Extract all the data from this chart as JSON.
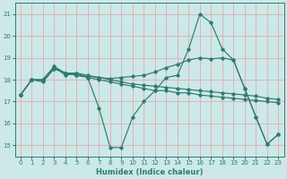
{
  "xlabel": "Humidex (Indice chaleur)",
  "ylabel": "",
  "bg_color": "#cce8e8",
  "grid_color": "#e8a0a0",
  "line_color": "#2e7d6e",
  "xlim": [
    -0.5,
    23.5
  ],
  "ylim": [
    14.5,
    21.5
  ],
  "yticks": [
    15,
    16,
    17,
    18,
    19,
    20,
    21
  ],
  "xticks": [
    0,
    1,
    2,
    3,
    4,
    5,
    6,
    7,
    8,
    9,
    10,
    11,
    12,
    13,
    14,
    15,
    16,
    17,
    18,
    19,
    20,
    21,
    22,
    23
  ],
  "lines": [
    {
      "x": [
        0,
        1,
        2,
        3,
        4,
        5,
        6,
        7,
        8,
        9,
        10,
        11,
        12,
        13,
        14,
        15,
        16,
        17,
        18,
        19,
        20,
        21,
        22,
        23
      ],
      "y": [
        17.3,
        18.0,
        18.0,
        18.6,
        18.2,
        18.3,
        18.1,
        16.7,
        14.9,
        14.9,
        16.3,
        17.0,
        17.5,
        18.1,
        18.2,
        19.4,
        21.0,
        20.6,
        19.4,
        18.9,
        17.6,
        16.3,
        15.05,
        15.5
      ]
    },
    {
      "x": [
        0,
        1,
        2,
        3,
        4,
        5,
        6,
        7,
        8,
        9,
        10,
        11,
        12,
        13,
        14,
        15,
        16,
        17,
        18,
        19,
        20,
        21,
        22,
        23
      ],
      "y": [
        17.3,
        18.0,
        17.9,
        18.5,
        18.3,
        18.2,
        18.1,
        18.0,
        17.9,
        17.8,
        17.7,
        17.6,
        17.5,
        17.5,
        17.4,
        17.4,
        17.3,
        17.25,
        17.2,
        17.15,
        17.1,
        17.05,
        17.0,
        16.95
      ]
    },
    {
      "x": [
        0,
        1,
        2,
        3,
        4,
        5,
        6,
        7,
        8,
        9,
        10,
        11,
        12,
        13,
        14,
        15,
        16,
        17,
        18,
        19,
        20,
        21,
        22,
        23
      ],
      "y": [
        17.3,
        18.0,
        18.0,
        18.6,
        18.3,
        18.3,
        18.2,
        18.1,
        18.05,
        18.1,
        18.15,
        18.2,
        18.35,
        18.55,
        18.7,
        18.9,
        19.0,
        18.95,
        19.0,
        18.9,
        17.6,
        16.3,
        15.05,
        15.5
      ]
    },
    {
      "x": [
        0,
        1,
        2,
        3,
        4,
        5,
        6,
        7,
        8,
        9,
        10,
        11,
        12,
        13,
        14,
        15,
        16,
        17,
        18,
        19,
        20,
        21,
        22,
        23
      ],
      "y": [
        17.3,
        18.0,
        17.95,
        18.5,
        18.3,
        18.2,
        18.15,
        18.1,
        18.0,
        17.9,
        17.8,
        17.75,
        17.7,
        17.65,
        17.6,
        17.55,
        17.5,
        17.45,
        17.4,
        17.35,
        17.3,
        17.25,
        17.15,
        17.1
      ]
    }
  ]
}
